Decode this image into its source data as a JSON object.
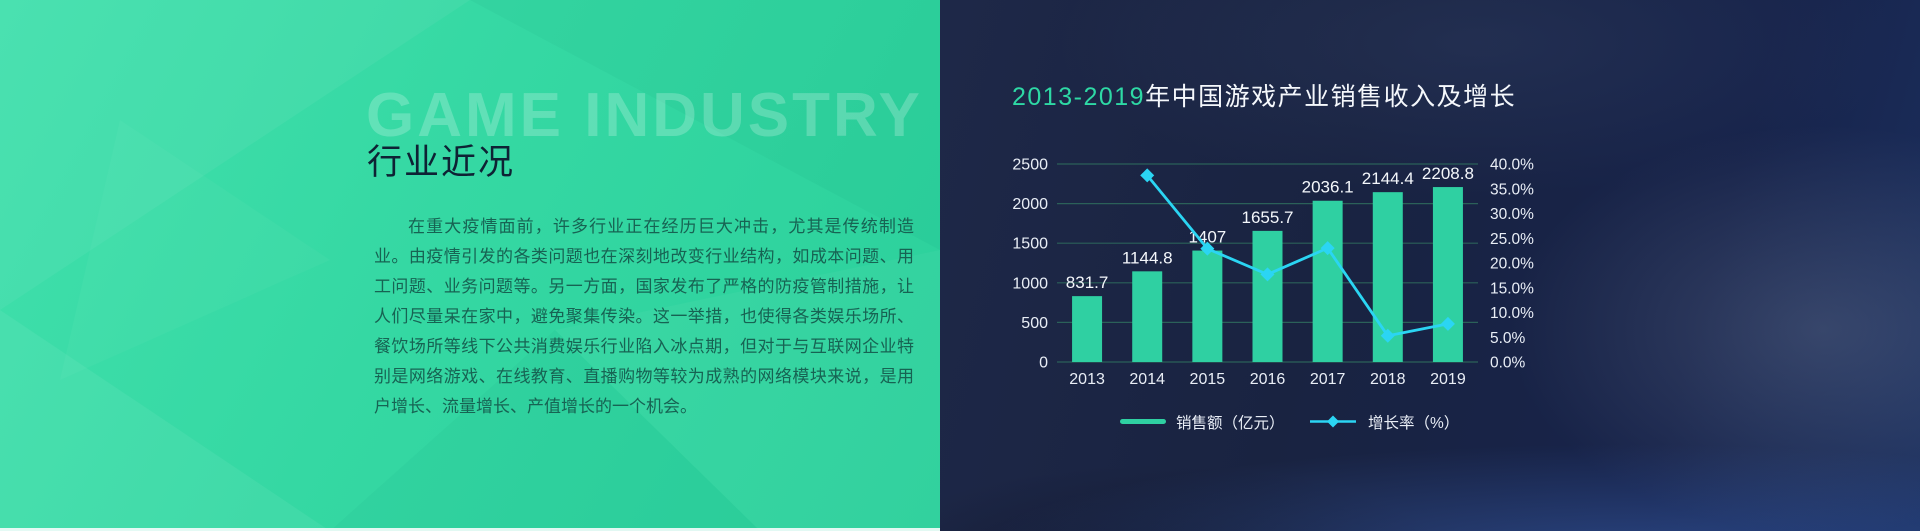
{
  "slide": {
    "watermark": "GAME INDUSTRY",
    "heading": "行业近况",
    "paragraph": "在重大疫情面前，许多行业正在经历巨大冲击，尤其是传统制造业。由疫情引发的各类问题也在深刻地改变行业结构，如成本问题、用工问题、业务问题等。另一方面，国家发布了严格的防疫管制措施，让人们尽量呆在家中，避免聚集传染。这一举措，也使得各类娱乐场所、餐饮场所等线下公共消费娱乐行业陷入冰点期，但对于与互联网企业特别是网络游戏、在线教育、直播购物等较为成熟的网络模块来说，是用户增长、流量增长、产值增长的一个机会。"
  },
  "chart_title": {
    "highlight": "2013-2019",
    "rest": "年中国游戏产业销售收入及增长"
  },
  "chart_data": {
    "type": "bar",
    "title": "2013-2019年中国游戏产业销售收入及增长",
    "categories": [
      "2013",
      "2014",
      "2015",
      "2016",
      "2017",
      "2018",
      "2019"
    ],
    "series": [
      {
        "name": "销售额（亿元）",
        "type": "bar",
        "axis": "left",
        "color": "#2fd0a2",
        "values": [
          831.7,
          1144.8,
          1407,
          1655.7,
          2036.1,
          2144.4,
          2208.8
        ],
        "labels": [
          "831.7",
          "1144.8",
          "1407",
          "1655.7",
          "2036.1",
          "2144.4",
          "2208.8"
        ]
      },
      {
        "name": "增长率（%）",
        "type": "line",
        "axis": "right",
        "color": "#2bd5f3",
        "values": [
          null,
          37.7,
          22.9,
          17.7,
          23.0,
          5.3,
          7.7
        ]
      }
    ],
    "left_axis": {
      "min": 0,
      "max": 2500,
      "step": 500,
      "ticks": [
        "0",
        "500",
        "1000",
        "1500",
        "2000",
        "2500"
      ]
    },
    "right_axis": {
      "min": 0,
      "max": 40,
      "step": 5,
      "ticks": [
        "0.0%",
        "5.0%",
        "10.0%",
        "15.0%",
        "20.0%",
        "25.0%",
        "30.0%",
        "35.0%",
        "40.0%"
      ]
    },
    "grid": true,
    "legend_position": "bottom",
    "legend": [
      "销售额（亿元）",
      "增长率（%）"
    ]
  },
  "colors": {
    "accent_green": "#2fd0a2",
    "accent_cyan": "#2bd5f3",
    "title_highlight": "#2ed9a5",
    "panel_green": "#35d9a3",
    "panel_navy": "#1b2545",
    "grid_line": "#2b6159",
    "axis_text": "#e9eef6",
    "bar_label_text": "#f4f7fb"
  }
}
